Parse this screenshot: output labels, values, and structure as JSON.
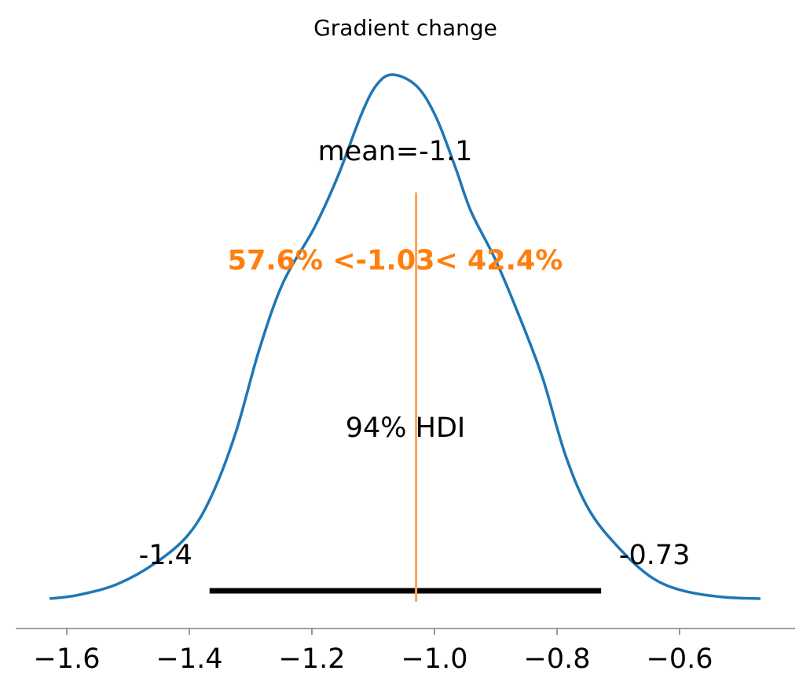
{
  "chart_data": {
    "type": "line",
    "title": "Gradient change",
    "xlabel": "",
    "ylabel": "",
    "xlim": [
      -1.68,
      -0.41
    ],
    "grid": false,
    "x_ticks": [
      -1.6,
      -1.4,
      -1.2,
      -1.0,
      -0.8,
      -0.6
    ],
    "x_tick_labels": [
      "−1.6",
      "−1.4",
      "−1.2",
      "−1.0",
      "−0.8",
      "−0.6"
    ],
    "series": [
      {
        "color": "#1f77b4",
        "x": [
          -1.628,
          -1.581,
          -1.517,
          -1.453,
          -1.401,
          -1.363,
          -1.324,
          -1.286,
          -1.247,
          -1.196,
          -1.158,
          -1.119,
          -1.094,
          -1.068,
          -1.029,
          -0.997,
          -0.965,
          -0.94,
          -0.901,
          -0.863,
          -0.824,
          -0.786,
          -0.747,
          -0.696,
          -0.645,
          -0.594,
          -0.529,
          -0.468
        ],
        "density_relative": [
          0,
          0.007,
          0.028,
          0.07,
          0.123,
          0.198,
          0.318,
          0.475,
          0.603,
          0.708,
          0.805,
          0.925,
          0.981,
          1,
          0.978,
          0.918,
          0.82,
          0.738,
          0.648,
          0.543,
          0.423,
          0.273,
          0.168,
          0.093,
          0.04,
          0.015,
          0.003,
          0
        ]
      }
    ],
    "mean_label": "mean=-1.1",
    "hdi": {
      "low": -1.367,
      "high": -0.728,
      "low_label": "-1.4",
      "high_label": "-0.73",
      "label": "94% HDI",
      "color": "#000000"
    },
    "ref": {
      "value": -1.03,
      "label": "57.6% <-1.03< 42.4%",
      "color": "#ff7f0e",
      "line_color": "#f9a65a"
    }
  }
}
